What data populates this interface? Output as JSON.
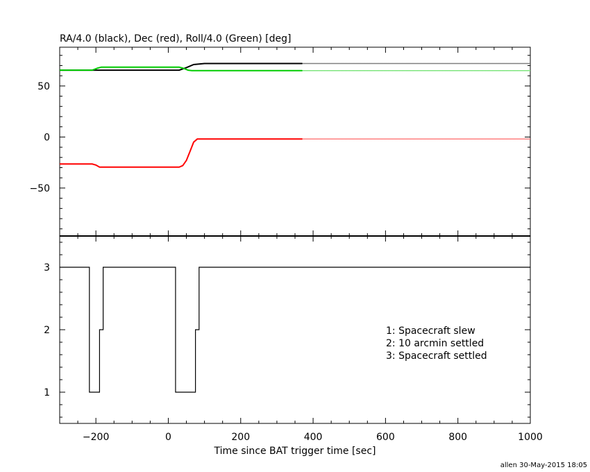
{
  "footer": "allen 30-May-2015 18:05",
  "chart_data": [
    {
      "type": "line",
      "title": "RA/4.0 (black), Dec (red), Roll/4.0 (Green) [deg]",
      "xlim": [
        -300,
        1000
      ],
      "ylim": [
        -97,
        88
      ],
      "y_ticks": [
        -50,
        0,
        50
      ],
      "series": [
        {
          "name": "RA/4.0",
          "color": "#000000",
          "solid": [
            [
              -300,
              65.5
            ],
            [
              -200,
              65.5
            ],
            [
              30,
              65.5
            ],
            [
              50,
              68
            ],
            [
              70,
              71
            ],
            [
              100,
              72
            ],
            [
              370,
              72
            ]
          ],
          "dotted": [
            [
              370,
              72
            ],
            [
              1000,
              72
            ]
          ]
        },
        {
          "name": "Dec",
          "color": "#ff0000",
          "solid": [
            [
              -300,
              -26.5
            ],
            [
              -210,
              -26.5
            ],
            [
              -200,
              -27.5
            ],
            [
              -190,
              -29.5
            ],
            [
              -150,
              -29.5
            ],
            [
              30,
              -29.5
            ],
            [
              40,
              -28
            ],
            [
              50,
              -23
            ],
            [
              60,
              -14
            ],
            [
              70,
              -5
            ],
            [
              80,
              -2
            ],
            [
              100,
              -2
            ],
            [
              370,
              -2
            ]
          ],
          "dotted": [
            [
              370,
              -2
            ],
            [
              1000,
              -2
            ]
          ]
        },
        {
          "name": "Roll/4.0",
          "color": "#00cc00",
          "solid": [
            [
              -300,
              65.5
            ],
            [
              -210,
              65.5
            ],
            [
              -195,
              67.5
            ],
            [
              -185,
              68.5
            ],
            [
              30,
              68.5
            ],
            [
              40,
              67.5
            ],
            [
              55,
              65.5
            ],
            [
              65,
              65
            ],
            [
              370,
              65
            ]
          ],
          "dotted": [
            [
              370,
              65
            ],
            [
              1000,
              65
            ]
          ]
        }
      ]
    },
    {
      "type": "line",
      "xlabel": "Time since BAT trigger time [sec]",
      "xlim": [
        -300,
        1000
      ],
      "ylim": [
        0.5,
        3.5
      ],
      "x_ticks": [
        -200,
        0,
        200,
        400,
        600,
        800,
        1000
      ],
      "y_ticks": [
        1,
        2,
        3
      ],
      "legend": [
        "1: Spacecraft slew",
        "2: 10 arcmin settled",
        "3: Spacecraft settled"
      ],
      "series": [
        {
          "color": "#000000",
          "step_points": [
            [
              -300,
              3
            ],
            [
              -218,
              3
            ],
            [
              -218,
              1
            ],
            [
              -190,
              1
            ],
            [
              -190,
              2
            ],
            [
              -180,
              2
            ],
            [
              -180,
              3
            ],
            [
              20,
              3
            ],
            [
              20,
              1
            ],
            [
              75,
              1
            ],
            [
              75,
              2
            ],
            [
              85,
              2
            ],
            [
              85,
              3
            ],
            [
              1000,
              3
            ]
          ]
        }
      ]
    }
  ]
}
